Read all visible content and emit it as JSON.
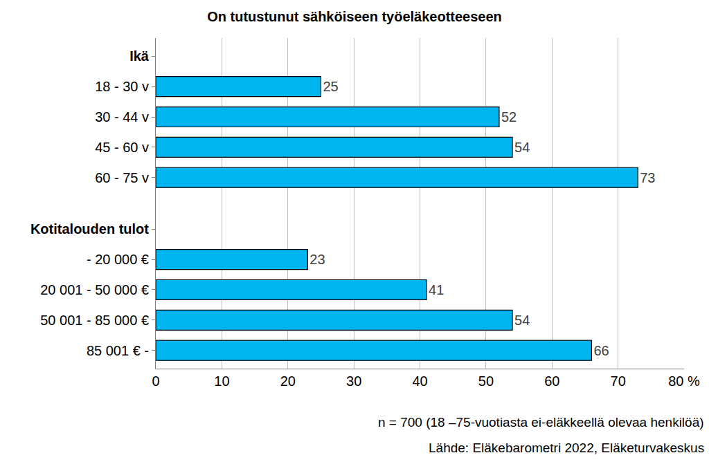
{
  "chart_data": {
    "type": "bar",
    "orientation": "horizontal",
    "title": "On tutustunut sähköiseen työeläkeotteeseen",
    "groups": [
      {
        "name": "Ikä",
        "categories": [
          "18 - 30 v",
          "30 - 44 v",
          "45 - 60 v",
          "60 - 75 v"
        ],
        "values": [
          25,
          52,
          54,
          73
        ]
      },
      {
        "name": "Kotitalouden tulot",
        "categories": [
          "- 20 000 €",
          "20 001 - 50 000 €",
          "50 001 - 85 000 €",
          "85 001 € -"
        ],
        "values": [
          23,
          41,
          54,
          66
        ]
      }
    ],
    "color": "#00b4f0",
    "xlim": [
      0,
      80
    ],
    "xticks": [
      0,
      10,
      20,
      30,
      40,
      50,
      60,
      70,
      {
        "value": 80,
        "label": "80 %"
      }
    ],
    "grid": true,
    "data_labels": true,
    "annotations": [
      "n = 700 (18 –75-vuotiasta ei-eläkkeellä olevaa henkilöä)",
      "Lähde: Eläkebarometri 2022, Eläketurvakeskus"
    ]
  }
}
